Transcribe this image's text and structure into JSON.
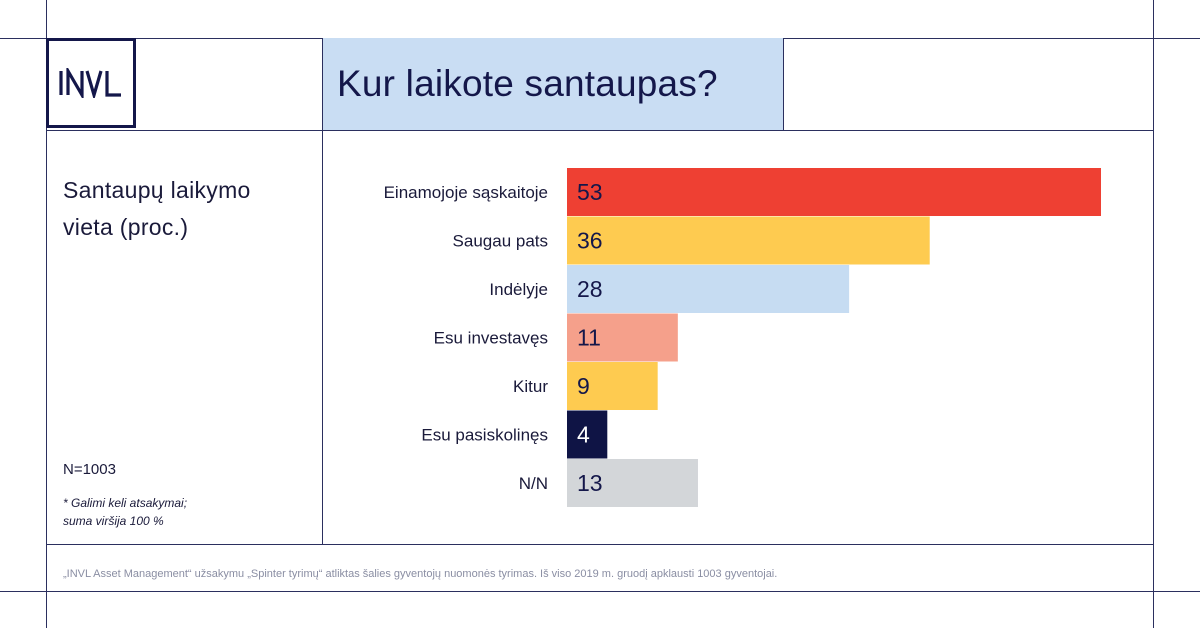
{
  "logo": {
    "text": "INVL"
  },
  "header": {
    "title": "Kur laikote santaupas?"
  },
  "sidebar": {
    "label": "Santaupų laikymo vieta (proc.)",
    "sample": "N=1003",
    "note_line1": "* Galimi keli atsakymai;",
    "note_line2": "suma viršija 100 %"
  },
  "footer": {
    "text": "„INVL Asset Management“ užsakymu „Spinter tyrimų“ atliktas šalies gyventojų nuomonės tyrimas. Iš viso 2019 m. gruodį apklausti 1003 gyventojai."
  },
  "chart_data": {
    "type": "bar",
    "orientation": "horizontal",
    "title": "Kur laikote santaupas?",
    "categories": [
      "Einamojoje sąskaitoje",
      "Saugau pats",
      "Indėlyje",
      "Esu investavęs",
      "Kitur",
      "Esu pasiskolinęs",
      "N/N"
    ],
    "values": [
      53,
      36,
      28,
      11,
      9,
      4,
      13
    ],
    "colors": [
      "#ee4033",
      "#fecb50",
      "#c6dcf2",
      "#f5a08b",
      "#fecb50",
      "#0f1445",
      "#d3d6d9"
    ],
    "label_colors": [
      "#14174a",
      "#14174a",
      "#14174a",
      "#14174a",
      "#14174a",
      "#ffffff",
      "#14174a"
    ],
    "xlim": [
      0,
      53
    ],
    "grid": false,
    "legend": "none"
  }
}
